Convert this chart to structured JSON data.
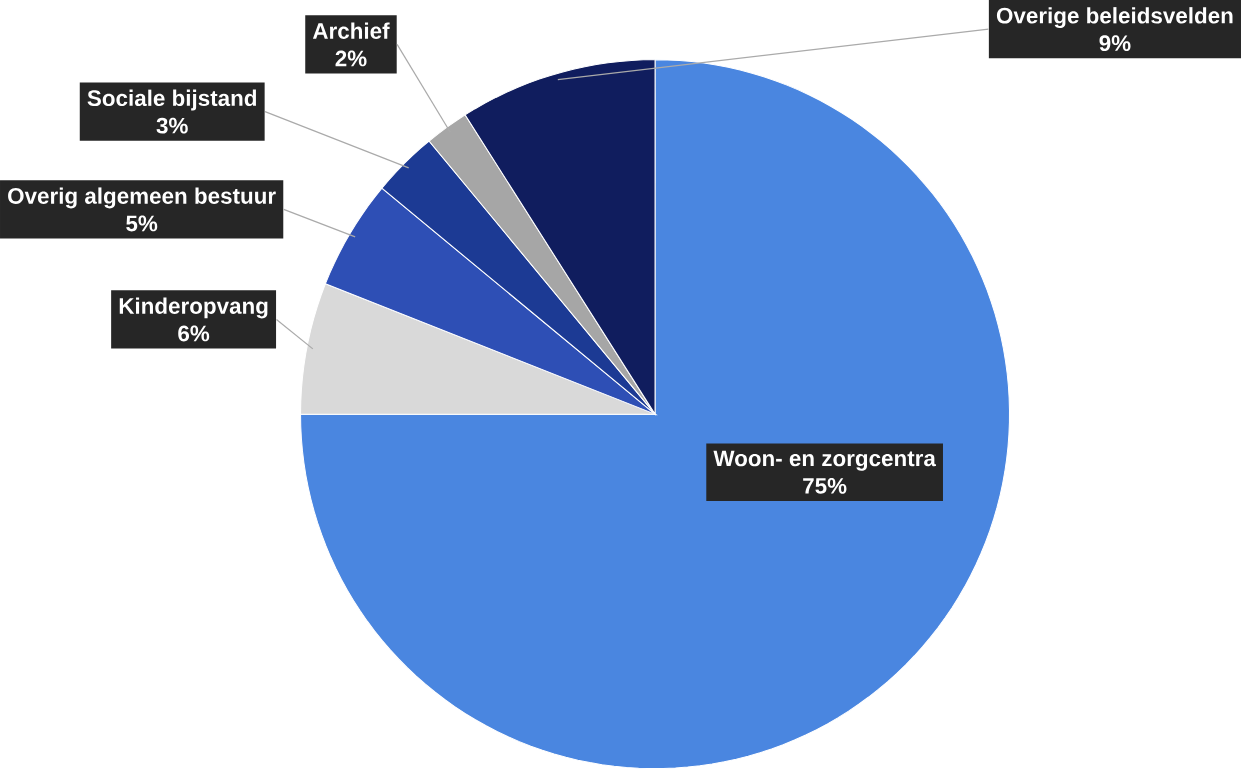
{
  "chart_data": {
    "type": "pie",
    "categories": [
      "Woon- en zorgcentra",
      "Kinderopvang",
      "Overig algemeen bestuur",
      "Sociale bijstand",
      "Archief",
      "Overige beleidsvelden"
    ],
    "values": [
      75,
      6,
      5,
      3,
      2,
      9
    ],
    "value_labels": [
      "75%",
      "6%",
      "5%",
      "3%",
      "2%",
      "9%"
    ],
    "colors": [
      "#4a86e0",
      "#d9d9d9",
      "#2e4fb5",
      "#1c3a94",
      "#a6a6a6",
      "#101d5e"
    ]
  }
}
